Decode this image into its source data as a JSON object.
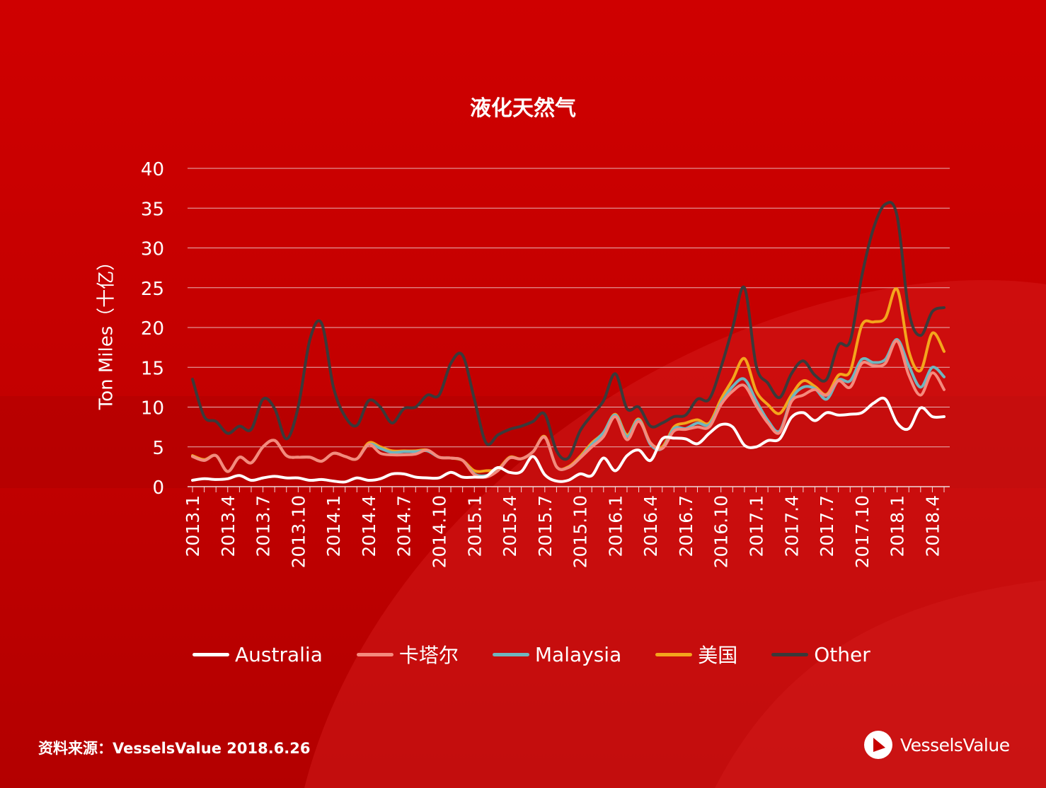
{
  "title": "液化天然气",
  "source": "资料来源：VesselsValue 2018.6.26",
  "brand": {
    "name": "VesselsValue"
  },
  "colors": {
    "background": "#c70000",
    "Australia": "#ffffff",
    "卡塔尔": "#f58a7d",
    "Malaysia": "#6fb6bf",
    "美国": "#f4a51c",
    "Other": "#3a3a3a"
  },
  "chart_data": {
    "type": "line",
    "title": "液化天然气",
    "ylabel": "Ton Miles（十亿）",
    "xlabel": "",
    "ylim": [
      0,
      40
    ],
    "yticks": [
      0,
      5,
      10,
      15,
      20,
      25,
      30,
      35,
      40
    ],
    "grid": true,
    "legend_position": "bottom",
    "x": [
      "2013.1",
      "2013.2",
      "2013.3",
      "2013.4",
      "2013.5",
      "2013.6",
      "2013.7",
      "2013.8",
      "2013.9",
      "2013.10",
      "2013.11",
      "2013.12",
      "2014.1",
      "2014.2",
      "2014.3",
      "2014.4",
      "2014.5",
      "2014.6",
      "2014.7",
      "2014.8",
      "2014.9",
      "2014.10",
      "2014.11",
      "2014.12",
      "2015.1",
      "2015.2",
      "2015.3",
      "2015.4",
      "2015.5",
      "2015.6",
      "2015.7",
      "2015.8",
      "2015.9",
      "2015.10",
      "2015.11",
      "2015.12",
      "2016.1",
      "2016.2",
      "2016.3",
      "2016.4",
      "2016.5",
      "2016.6",
      "2016.7",
      "2016.8",
      "2016.9",
      "2016.10",
      "2016.11",
      "2016.12",
      "2017.1",
      "2017.2",
      "2017.3",
      "2017.4",
      "2017.5",
      "2017.6",
      "2017.7",
      "2017.8",
      "2017.9",
      "2017.10",
      "2017.11",
      "2017.12",
      "2018.1",
      "2018.2",
      "2018.3",
      "2018.4",
      "2018.5"
    ],
    "tick_labels": [
      "2013.1",
      "2013.4",
      "2013.7",
      "2013.10",
      "2014.1",
      "2014.4",
      "2014.7",
      "2014.10",
      "2015.1",
      "2015.4",
      "2015.7",
      "2015.10",
      "2016.1",
      "2016.4",
      "2016.7",
      "2016.10",
      "2017.1",
      "2017.4",
      "2017.7",
      "2017.10",
      "2018.1",
      "2018.4"
    ],
    "series": [
      {
        "name": "Australia",
        "values": [
          0.8,
          1.0,
          0.9,
          1.0,
          1.4,
          0.8,
          1.1,
          1.3,
          1.1,
          1.1,
          0.8,
          0.9,
          0.7,
          0.6,
          1.1,
          0.8,
          1.0,
          1.6,
          1.6,
          1.2,
          1.1,
          1.1,
          1.8,
          1.2,
          1.2,
          1.3,
          2.4,
          1.8,
          1.9,
          3.8,
          1.5,
          0.7,
          0.8,
          1.6,
          1.4,
          3.6,
          2.0,
          3.9,
          4.6,
          3.3,
          6.0,
          6.1,
          6.0,
          5.4,
          6.7,
          7.8,
          7.5,
          5.2,
          5.0,
          5.8,
          6.0,
          8.7,
          9.3,
          8.3,
          9.3,
          9.0,
          9.1,
          9.3,
          10.5,
          11.0,
          8.0,
          7.3,
          9.9,
          8.8,
          8.8
        ]
      },
      {
        "name": "卡塔尔",
        "values": [
          3.8,
          3.3,
          3.9,
          1.9,
          3.7,
          3.0,
          5.0,
          5.8,
          3.9,
          3.7,
          3.7,
          3.2,
          4.2,
          3.8,
          3.5,
          5.3,
          4.2,
          4.0,
          4.0,
          4.1,
          4.6,
          3.7,
          3.6,
          3.3,
          1.5,
          1.2,
          2.0,
          3.6,
          3.5,
          4.4,
          6.2,
          2.5,
          2.4,
          3.6,
          5.0,
          6.3,
          8.8,
          5.9,
          8.2,
          5.5,
          4.8,
          7.0,
          7.2,
          7.5,
          7.5,
          10.3,
          12.0,
          12.7,
          10.2,
          8.0,
          6.8,
          10.7,
          11.5,
          12.2,
          11.5,
          13.3,
          12.5,
          15.5,
          15.2,
          15.5,
          18.3,
          14.0,
          11.5,
          14.3,
          12.2
        ]
      },
      {
        "name": "Malaysia",
        "values": [
          3.8,
          3.3,
          3.9,
          1.9,
          3.7,
          3.0,
          5.0,
          5.8,
          3.9,
          3.7,
          3.7,
          3.2,
          4.2,
          3.8,
          3.5,
          5.3,
          4.8,
          4.3,
          4.4,
          4.4,
          4.5,
          3.7,
          3.6,
          3.3,
          1.6,
          1.4,
          2.0,
          3.6,
          3.5,
          4.4,
          6.2,
          2.5,
          2.4,
          3.6,
          5.3,
          6.8,
          9.0,
          6.3,
          8.4,
          5.3,
          4.8,
          7.3,
          7.3,
          8.0,
          7.8,
          10.5,
          12.6,
          13.5,
          10.8,
          8.3,
          7.0,
          11.0,
          12.5,
          12.3,
          11.0,
          13.4,
          13.3,
          16.0,
          15.6,
          16.0,
          18.5,
          15.2,
          12.5,
          15.0,
          13.8
        ]
      },
      {
        "name": "美国",
        "values": [
          3.9,
          3.4,
          3.9,
          1.9,
          3.7,
          3.0,
          5.0,
          5.8,
          3.9,
          3.7,
          3.7,
          3.2,
          4.2,
          3.8,
          3.5,
          5.5,
          5.0,
          4.5,
          4.5,
          4.5,
          4.6,
          3.7,
          3.6,
          3.3,
          2.0,
          2.0,
          2.2,
          3.7,
          3.5,
          4.4,
          6.3,
          2.5,
          2.5,
          3.8,
          5.5,
          6.8,
          9.1,
          6.5,
          8.5,
          5.5,
          5.0,
          7.5,
          8.0,
          8.4,
          8.0,
          11.0,
          13.5,
          16.1,
          12.0,
          10.3,
          9.2,
          11.5,
          13.3,
          12.6,
          11.6,
          14.0,
          14.5,
          20.3,
          20.7,
          21.2,
          24.8,
          17.0,
          14.6,
          19.3,
          17.0
        ]
      },
      {
        "name": "Other",
        "values": [
          13.5,
          8.8,
          8.2,
          6.7,
          7.6,
          7.2,
          11.0,
          9.8,
          6.0,
          10.0,
          18.5,
          20.5,
          12.5,
          8.8,
          7.7,
          10.8,
          10.0,
          8.0,
          9.8,
          10.0,
          11.5,
          11.5,
          15.5,
          16.5,
          11.0,
          5.5,
          6.5,
          7.2,
          7.6,
          8.2,
          9.1,
          4.5,
          3.6,
          7.0,
          9.0,
          10.8,
          14.2,
          9.8,
          10.0,
          7.6,
          8.0,
          8.8,
          9.0,
          11.0,
          11.0,
          15.0,
          20.0,
          25.0,
          15.2,
          13.0,
          11.2,
          14.2,
          15.8,
          14.0,
          13.5,
          17.8,
          18.3,
          26.5,
          32.5,
          35.5,
          34.0,
          22.0,
          19.0,
          22.0,
          22.5
        ]
      }
    ]
  }
}
